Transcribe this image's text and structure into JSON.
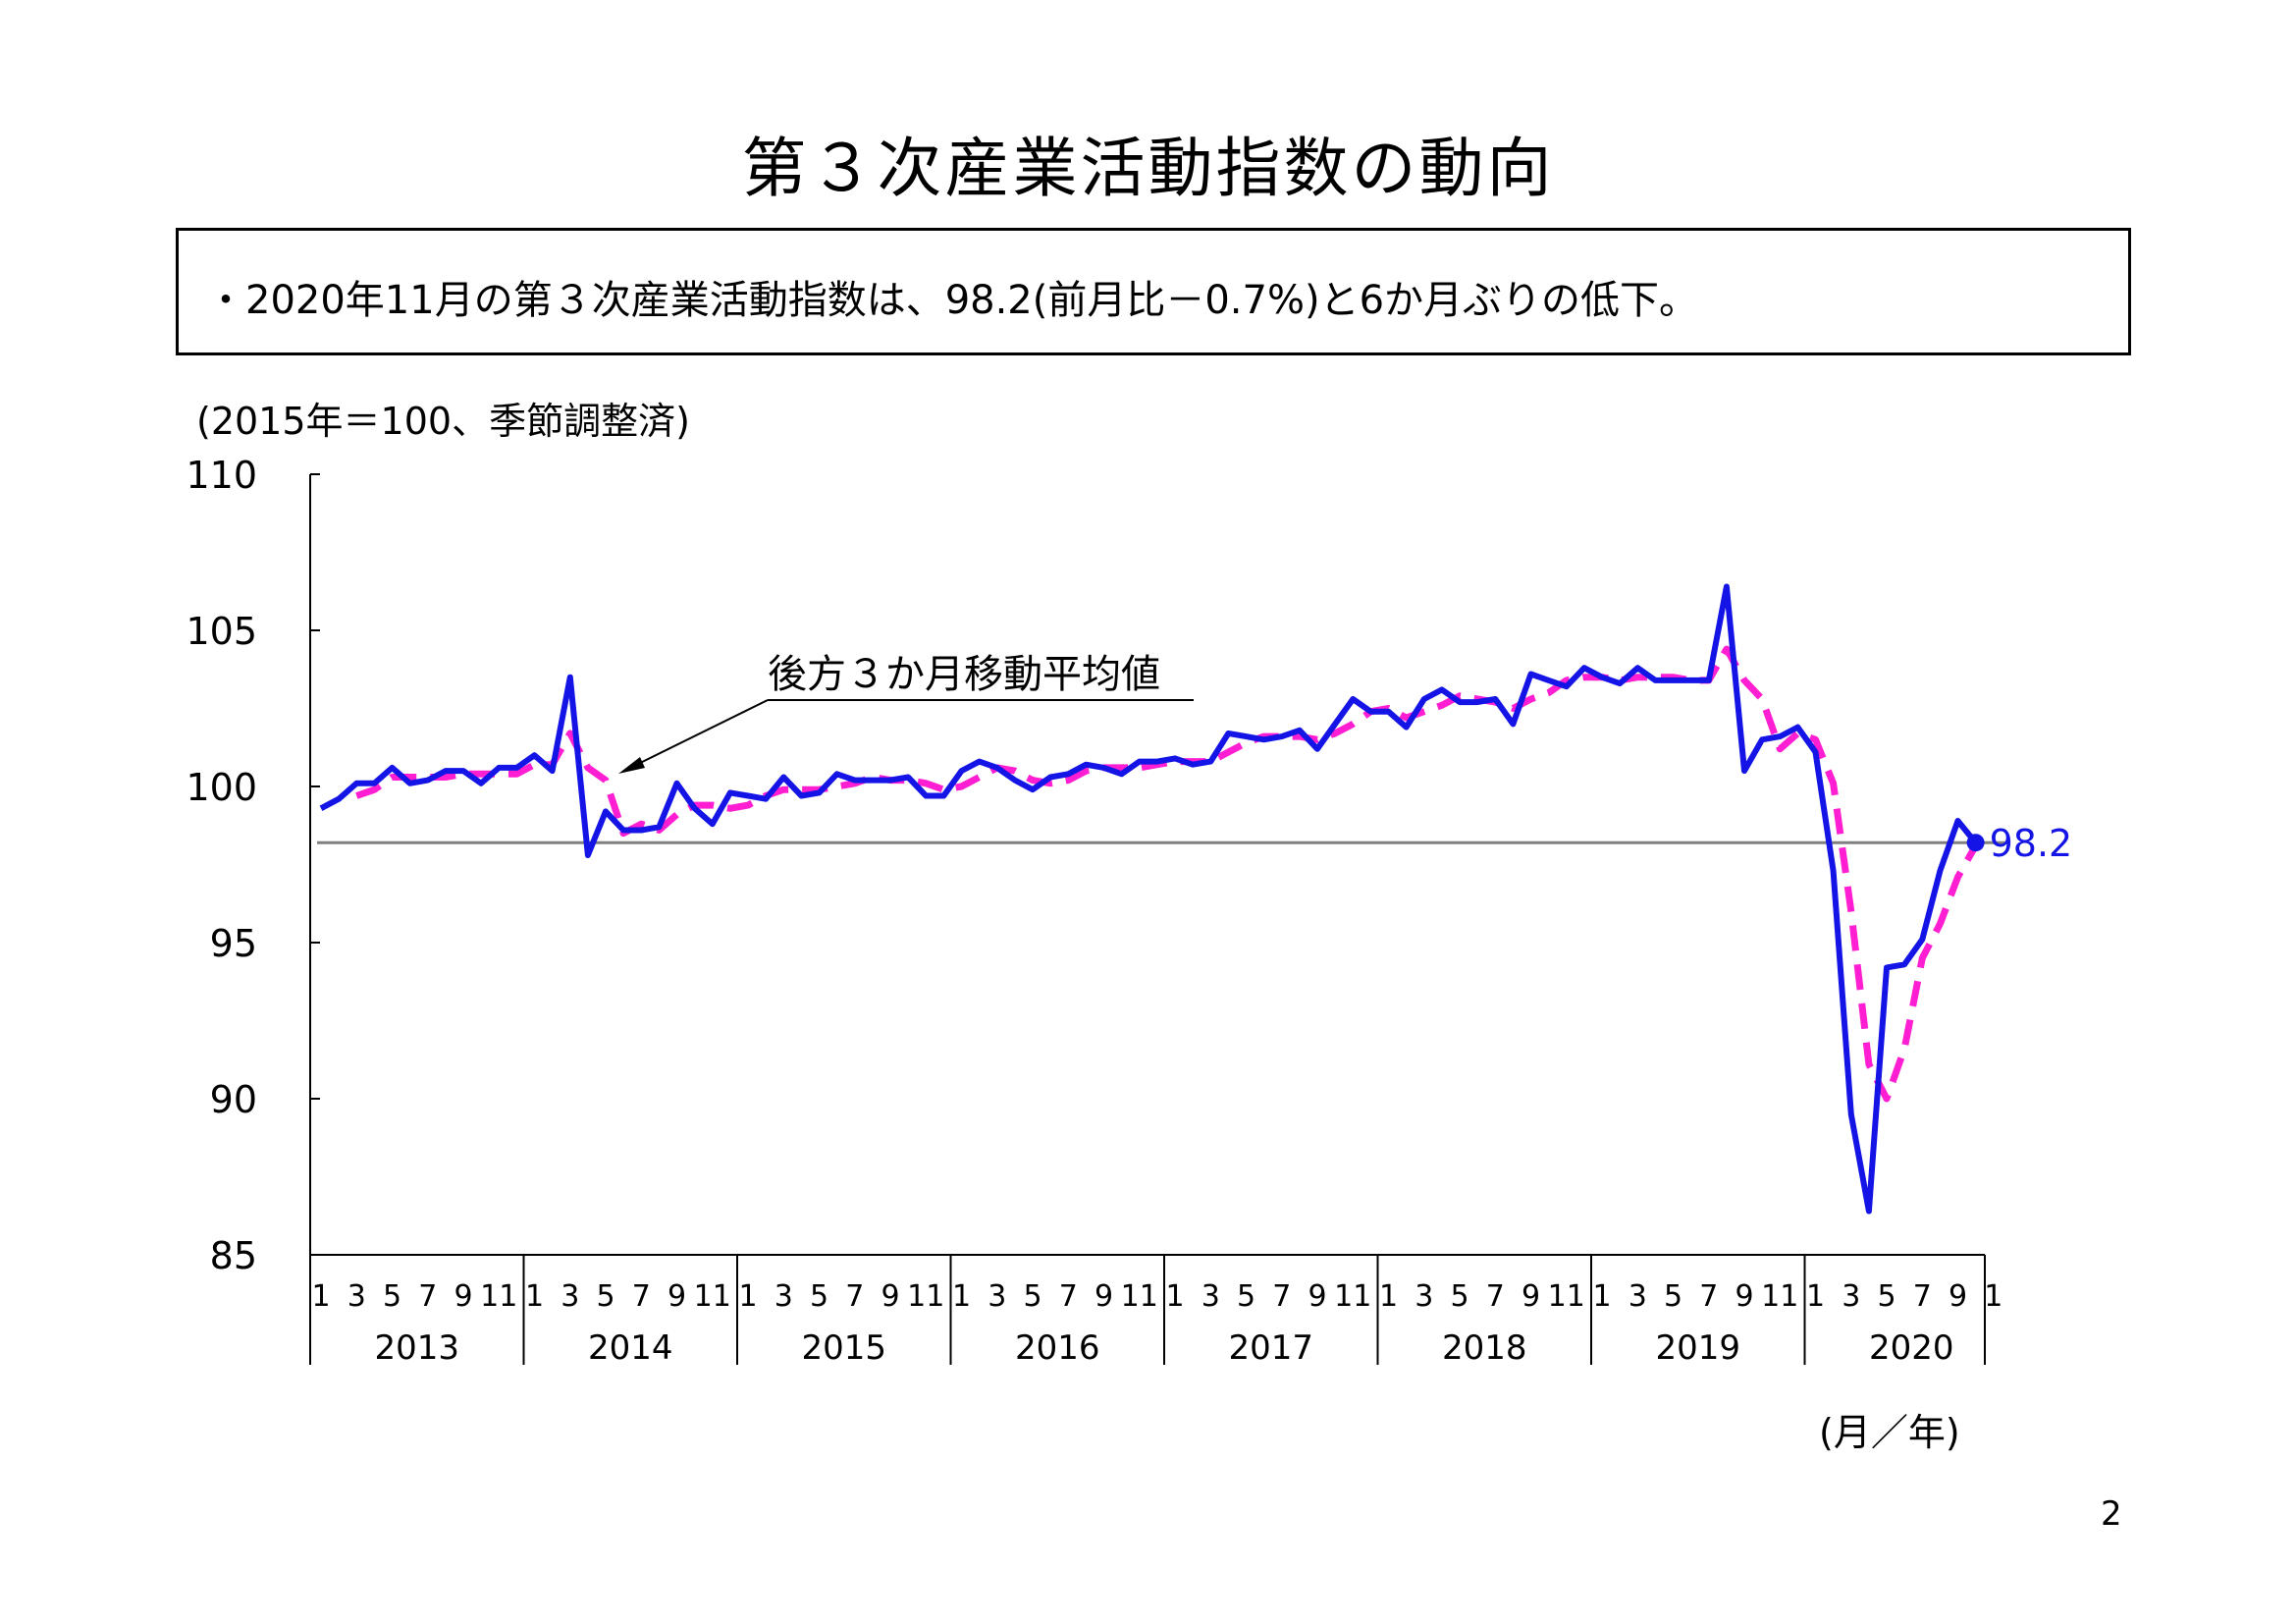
{
  "title": "第３次産業活動指数の動向",
  "summary": "・2020年11月の第３次産業活動指数は、98.2(前月比－0.7%)と6か月ぶりの低下。",
  "unit_note": "(2015年＝100、季節調整済)",
  "x_unit": "(月／年)",
  "page_number": "2",
  "colors": {
    "index_line": "#1414e6",
    "moving_average": "#ff1ed2",
    "reference_line": "#808080",
    "label": "#1414e6"
  },
  "chart_data": {
    "type": "line",
    "ylim": [
      85,
      110
    ],
    "y_ticks": [
      85,
      90,
      95,
      100,
      105,
      110
    ],
    "years": [
      "2013",
      "2014",
      "2015",
      "2016",
      "2017",
      "2018",
      "2019",
      "2020"
    ],
    "month_tick_labels": [
      "1",
      "3",
      "5",
      "7",
      "9",
      "11"
    ],
    "x_last_year_month_labels": [
      "1",
      "3",
      "5",
      "7",
      "9",
      "1"
    ],
    "annotation": "後方３か月移動平均値",
    "reference_value": 98.2,
    "latest_label": "98.2",
    "series": [
      {
        "key": "index",
        "values": [
          99.3,
          99.6,
          100.1,
          100.1,
          100.6,
          100.1,
          100.2,
          100.5,
          100.5,
          100.1,
          100.6,
          100.6,
          101.0,
          100.5,
          103.5,
          97.8,
          99.2,
          98.6,
          98.6,
          98.7,
          100.1,
          99.3,
          98.8,
          99.8,
          99.7,
          99.6,
          100.3,
          99.7,
          99.8,
          100.4,
          100.2,
          100.2,
          100.2,
          100.3,
          99.7,
          99.7,
          100.5,
          100.8,
          100.6,
          100.2,
          99.9,
          100.3,
          100.4,
          100.7,
          100.6,
          100.4,
          100.8,
          100.8,
          100.9,
          100.7,
          100.8,
          101.7,
          101.6,
          101.5,
          101.6,
          101.8,
          101.2,
          102.0,
          102.8,
          102.4,
          102.4,
          101.9,
          102.8,
          103.1,
          102.7,
          102.7,
          102.8,
          102.0,
          103.6,
          103.4,
          103.2,
          103.8,
          103.5,
          103.3,
          103.8,
          103.4,
          103.4,
          103.4,
          103.4,
          106.4,
          100.5,
          101.5,
          101.6,
          101.9,
          101.1,
          97.3,
          89.5,
          86.4,
          94.2,
          94.3,
          95.1,
          97.3,
          98.9,
          98.2
        ]
      },
      {
        "key": "moving_average",
        "values": [
          null,
          null,
          99.7,
          99.9,
          100.3,
          100.3,
          100.3,
          100.3,
          100.4,
          100.4,
          100.4,
          100.4,
          100.7,
          100.7,
          101.7,
          100.6,
          100.2,
          98.5,
          98.8,
          98.6,
          99.1,
          99.4,
          99.4,
          99.3,
          99.4,
          99.7,
          99.9,
          99.9,
          99.9,
          100.0,
          100.1,
          100.3,
          100.2,
          100.2,
          100.1,
          99.9,
          100.0,
          100.3,
          100.6,
          100.5,
          100.2,
          100.1,
          100.2,
          100.5,
          100.6,
          100.6,
          100.6,
          100.7,
          100.8,
          100.8,
          100.8,
          101.1,
          101.4,
          101.6,
          101.6,
          101.6,
          101.5,
          101.7,
          102.0,
          102.4,
          102.5,
          102.2,
          102.4,
          102.6,
          102.9,
          102.8,
          102.7,
          102.5,
          102.8,
          103.0,
          103.4,
          103.5,
          103.5,
          103.4,
          103.5,
          103.5,
          103.5,
          103.4,
          103.4,
          104.4,
          103.4,
          102.8,
          101.2,
          101.7,
          101.5,
          100.1,
          96.0,
          91.1,
          90.0,
          91.6,
          94.5,
          95.6,
          97.1,
          98.1
        ]
      }
    ]
  }
}
